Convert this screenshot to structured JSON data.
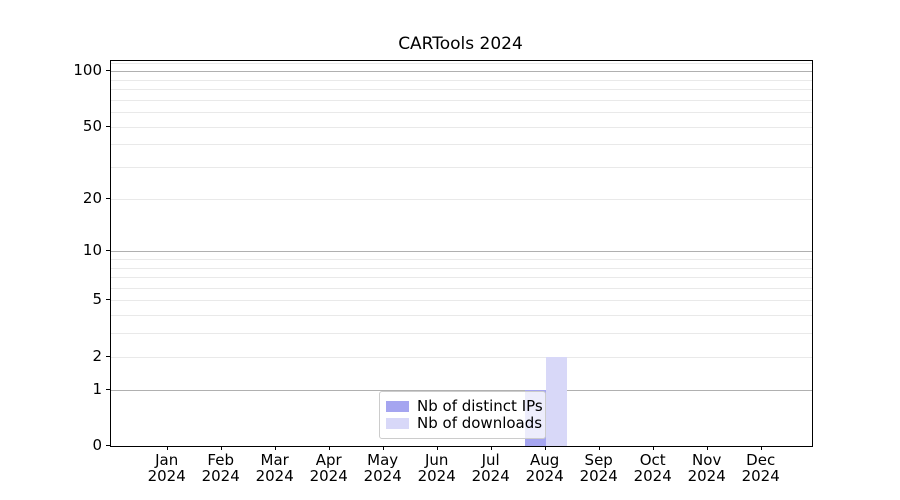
{
  "title": "CARTools 2024",
  "chart_data": {
    "type": "bar",
    "title": "CARTools 2024",
    "categories": [
      "Jan 2024",
      "Feb 2024",
      "Mar 2024",
      "Apr 2024",
      "May 2024",
      "Jun 2024",
      "Jul 2024",
      "Aug 2024",
      "Sep 2024",
      "Oct 2024",
      "Nov 2024",
      "Dec 2024"
    ],
    "series": [
      {
        "name": "Nb of distinct IPs",
        "color": "#a5a5f0",
        "values": [
          0,
          0,
          0,
          0,
          0,
          0,
          0,
          1,
          0,
          0,
          0,
          0
        ]
      },
      {
        "name": "Nb of downloads",
        "color": "#d8d8f8",
        "values": [
          0,
          0,
          0,
          0,
          0,
          0,
          0,
          2,
          0,
          0,
          0,
          0
        ]
      }
    ],
    "xlabel": "",
    "ylabel": "",
    "yscale": "log1p",
    "ylim": [
      0,
      113.2
    ],
    "y_ticks": [
      0,
      1,
      2,
      5,
      10,
      20,
      50,
      100
    ],
    "grid_major": [
      1,
      10,
      100
    ],
    "grid_minor": [
      2,
      3,
      4,
      5,
      6,
      7,
      8,
      9,
      20,
      30,
      40,
      50,
      60,
      70,
      80,
      90,
      110
    ],
    "legend_position": "lower center",
    "grid": "on"
  },
  "colors": {
    "axis": "#000000",
    "grid_major": "#b0b0b0",
    "grid_minor": "#e9e9e9",
    "legend_border": "#cccccc",
    "background": "#ffffff"
  }
}
